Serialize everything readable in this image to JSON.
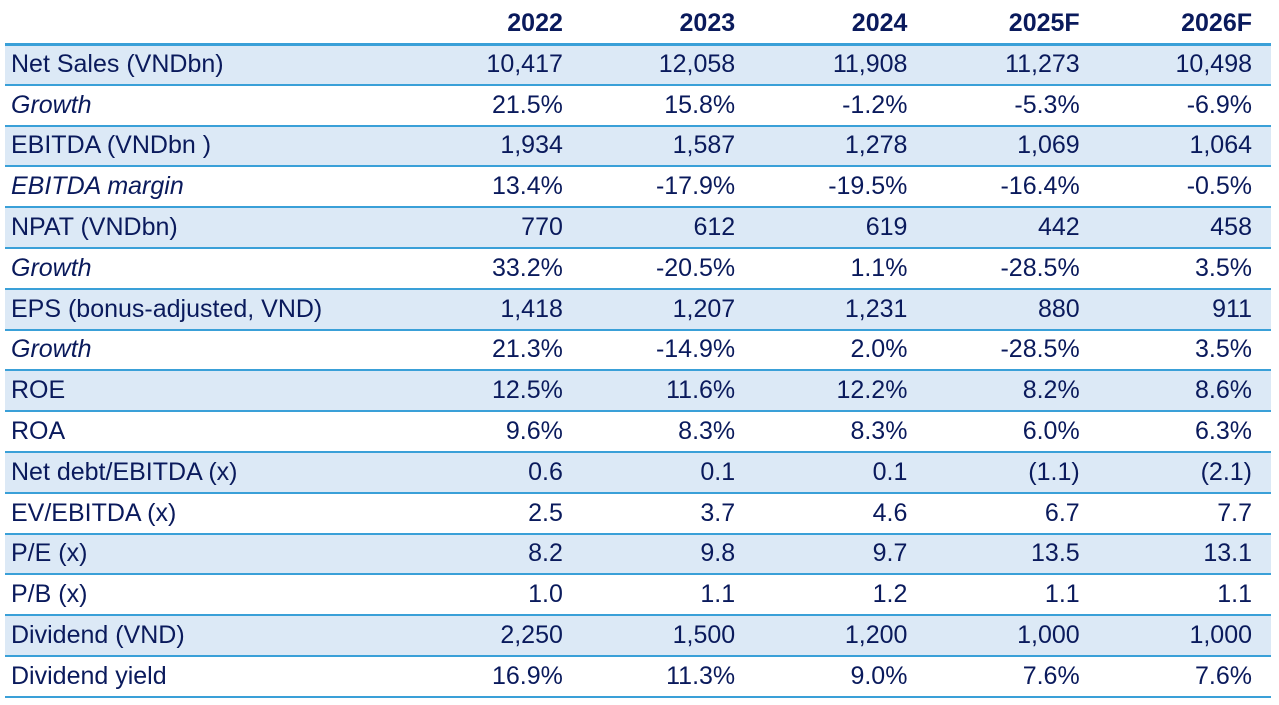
{
  "chart_data": {
    "type": "table",
    "columns": [
      "",
      "2022",
      "2023",
      "2024",
      "2025F",
      "2026F"
    ],
    "rows": [
      {
        "label": "Net Sales (VNDbn)",
        "italic": false,
        "values": [
          "10,417",
          "12,058",
          "11,908",
          "11,273",
          "10,498"
        ]
      },
      {
        "label": "Growth",
        "italic": true,
        "values": [
          "21.5%",
          "15.8%",
          "-1.2%",
          "-5.3%",
          "-6.9%"
        ]
      },
      {
        "label": "EBITDA (VNDbn )",
        "italic": false,
        "values": [
          "1,934",
          "1,587",
          "1,278",
          "1,069",
          "1,064"
        ]
      },
      {
        "label": "EBITDA margin",
        "italic": true,
        "values": [
          "13.4%",
          "-17.9%",
          "-19.5%",
          "-16.4%",
          "-0.5%"
        ]
      },
      {
        "label": "NPAT (VNDbn)",
        "italic": false,
        "values": [
          "770",
          "612",
          "619",
          "442",
          "458"
        ]
      },
      {
        "label": "Growth",
        "italic": true,
        "values": [
          "33.2%",
          "-20.5%",
          "1.1%",
          "-28.5%",
          "3.5%"
        ]
      },
      {
        "label": "EPS (bonus-adjusted, VND)",
        "italic": false,
        "values": [
          "1,418",
          "1,207",
          "1,231",
          "880",
          "911"
        ]
      },
      {
        "label": "Growth",
        "italic": true,
        "values": [
          "21.3%",
          "-14.9%",
          "2.0%",
          "-28.5%",
          "3.5%"
        ]
      },
      {
        "label": "ROE",
        "italic": false,
        "values": [
          "12.5%",
          "11.6%",
          "12.2%",
          "8.2%",
          "8.6%"
        ]
      },
      {
        "label": "ROA",
        "italic": false,
        "values": [
          "9.6%",
          "8.3%",
          "8.3%",
          "6.0%",
          "6.3%"
        ]
      },
      {
        "label": "Net debt/EBITDA (x)",
        "italic": false,
        "values": [
          "0.6",
          "0.1",
          "0.1",
          "(1.1)",
          "(2.1)"
        ]
      },
      {
        "label": "EV/EBITDA (x)",
        "italic": false,
        "values": [
          "2.5",
          "3.7",
          "4.6",
          "6.7",
          "7.7"
        ]
      },
      {
        "label": "P/E (x)",
        "italic": false,
        "values": [
          "8.2",
          "9.8",
          "9.7",
          "13.5",
          "13.1"
        ]
      },
      {
        "label": "P/B (x)",
        "italic": false,
        "values": [
          "1.0",
          "1.1",
          "1.2",
          "1.1",
          "1.1"
        ]
      },
      {
        "label": "Dividend (VND)",
        "italic": false,
        "values": [
          "2,250",
          "1,500",
          "1,200",
          "1,000",
          "1,000"
        ]
      },
      {
        "label": "Dividend yield",
        "italic": false,
        "values": [
          "16.9%",
          "11.3%",
          "9.0%",
          "7.6%",
          "7.6%"
        ]
      }
    ],
    "colors": {
      "text": "#0a1a5c",
      "rule": "#3aa0d8",
      "shade": "#dce9f6"
    }
  }
}
